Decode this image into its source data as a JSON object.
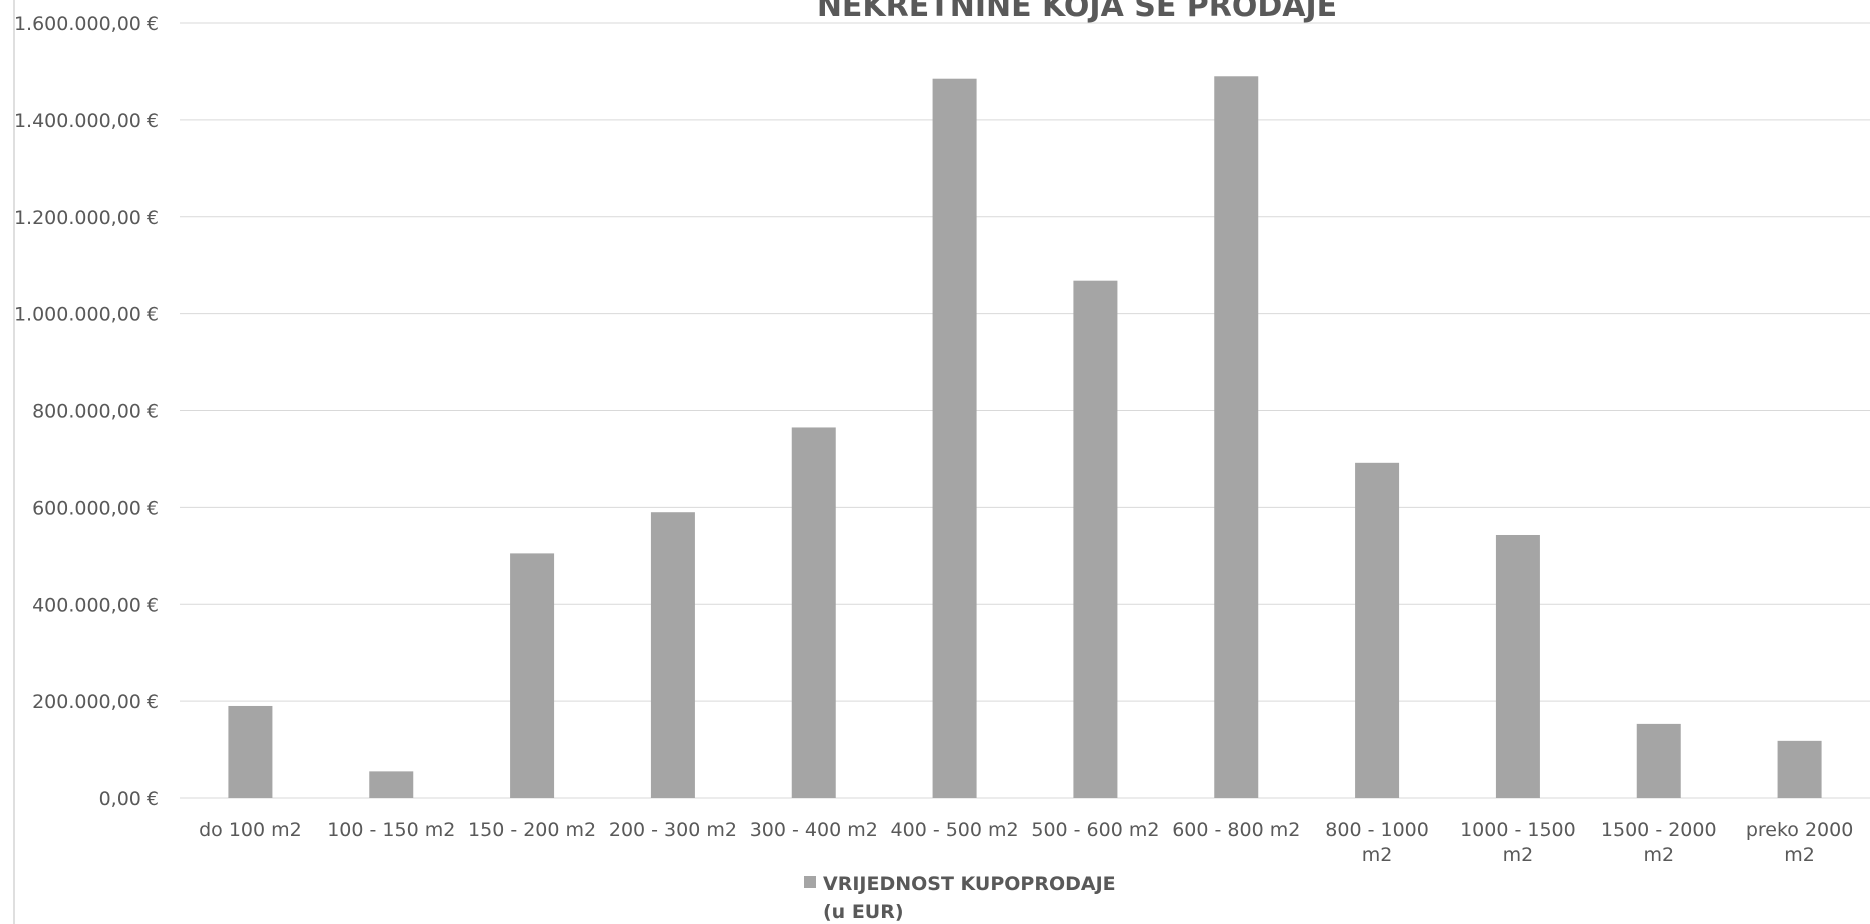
{
  "chart_data": {
    "type": "bar",
    "title": "NEKRETNINE KOJA SE PRODAJE",
    "categories": [
      "do 100 m2",
      "100 - 150 m2",
      "150 - 200 m2",
      "200 - 300 m2",
      "300 - 400 m2",
      "400 - 500 m2",
      "500 - 600 m2",
      "600 - 800 m2",
      "800 - 1000 m2",
      "1000 - 1500 m2",
      "1500 - 2000 m2",
      "preko 2000 m2"
    ],
    "series": [
      {
        "name": "VRIJEDNOST KUPOPRODAJE (u EUR)",
        "values": [
          190000,
          55000,
          505000,
          590000,
          765000,
          1485000,
          1068000,
          1490000,
          692000,
          543000,
          153000,
          118000
        ]
      }
    ],
    "y_ticks": [
      "0,00 €",
      "200.000,00 €",
      "400.000,00 €",
      "600.000,00 €",
      "800.000,00 €",
      "1.000.000,00 €",
      "1.200.000,00 €",
      "1.400.000,00 €",
      "1.600.000,00 €"
    ],
    "ylim": [
      0,
      1600000
    ],
    "xlabel": "",
    "ylabel": "",
    "grid": true,
    "legend": {
      "position": "bottom",
      "marker_label": "VRIJEDNOST KUPOPRODAJE",
      "marker_label_line2": "(u EUR)"
    },
    "colors": {
      "bar": "#a5a5a5",
      "text": "#595959",
      "grid": "#d9d9d9"
    }
  }
}
